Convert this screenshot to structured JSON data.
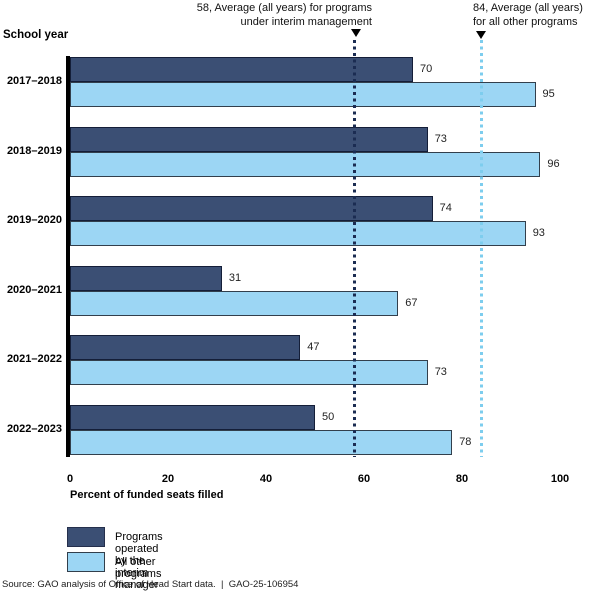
{
  "chart_data": {
    "type": "bar",
    "orientation": "horizontal",
    "title": "",
    "y_axis_title": "School year",
    "xlabel": "Percent of funded seats filled",
    "xlim": [
      0,
      100
    ],
    "x_ticks": [
      0,
      20,
      40,
      60,
      80,
      100
    ],
    "grid": false,
    "categories": [
      "2017–2018",
      "2018–2019",
      "2019–2020",
      "2020–2021",
      "2021–2022",
      "2022–2023"
    ],
    "series": [
      {
        "name": "Programs operated by the interim manager",
        "values": [
          70,
          73,
          74,
          31,
          47,
          50
        ],
        "fill_color": "#3B4F74",
        "border_color": "#141E38"
      },
      {
        "name": "All other programs",
        "values": [
          95,
          96,
          93,
          67,
          73,
          78
        ],
        "fill_color": "#9CD6F4",
        "border_color": "#323F4C"
      }
    ],
    "reference_lines": [
      {
        "value": 58,
        "label_line1": "58, Average (all years) for programs",
        "label_line2": "under interim management",
        "color": "#1B2C52",
        "marker": "triangle-down",
        "label_alignment": "right"
      },
      {
        "value": 84,
        "label_line1": "84, Average (all years)",
        "label_line2": "for all other programs",
        "color": "#7DCDEE",
        "marker": "triangle-down",
        "label_alignment": "left"
      }
    ],
    "legend": {
      "position": "bottom-left",
      "entries": [
        {
          "label": "Programs operated by the interim manager",
          "color": "#3B4F74"
        },
        {
          "label": "All other programs",
          "color": "#9CD6F4"
        }
      ]
    },
    "source": "Source: GAO analysis of Office of Head Start data.  |  GAO-25-106954"
  }
}
